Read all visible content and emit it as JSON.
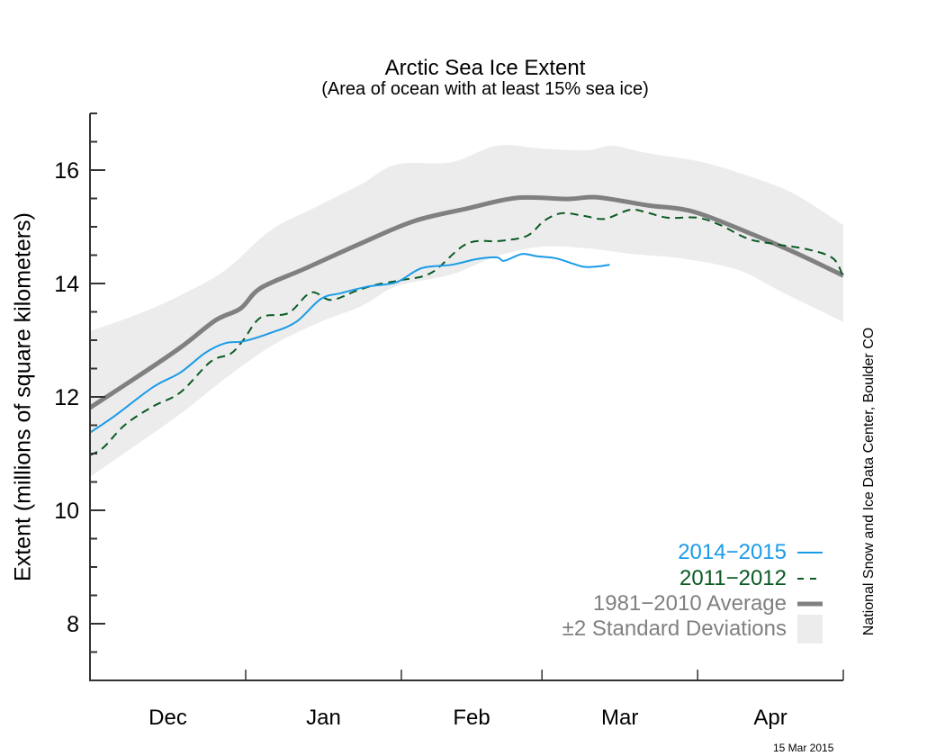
{
  "chart_data": {
    "type": "line",
    "title": "Arctic Sea Ice Extent",
    "subtitle": "(Area of ocean with at least 15% sea ice)",
    "xlabel": "",
    "ylabel": "Extent (millions of square kilometers)",
    "x_unit": "days since Dec 1",
    "xlim": [
      0,
      150
    ],
    "ylim": [
      7,
      17
    ],
    "y_major_ticks": [
      8,
      10,
      12,
      14,
      16
    ],
    "y_tick_labels": [
      "8",
      "10",
      "12",
      "14",
      "16"
    ],
    "y_minor_step": 0.5,
    "x_month_ticks": [
      0,
      31,
      62,
      90,
      121,
      150
    ],
    "x_month_labels": [
      {
        "label": "Dec",
        "center": 15.5
      },
      {
        "label": "Jan",
        "center": 46.5
      },
      {
        "label": "Feb",
        "center": 76
      },
      {
        "label": "Mar",
        "center": 105.5
      },
      {
        "label": "Apr",
        "center": 135.5
      }
    ],
    "grid": false,
    "legend_position": "bottom-right",
    "series": [
      {
        "name": "2014−2015",
        "style": "solid",
        "color": "#1a9be8",
        "x": [
          0,
          5,
          12.5,
          18,
          23,
          27,
          30.5,
          36,
          41,
          46,
          50,
          55.5,
          61,
          66,
          72,
          77,
          81,
          82.5,
          86,
          89,
          93,
          98,
          101,
          103.5
        ],
        "values": [
          11.37,
          11.67,
          12.17,
          12.43,
          12.78,
          12.95,
          12.98,
          13.13,
          13.32,
          13.73,
          13.83,
          13.95,
          14.02,
          14.27,
          14.33,
          14.43,
          14.46,
          14.4,
          14.52,
          14.48,
          14.44,
          14.3,
          14.3,
          14.33
        ]
      },
      {
        "name": "2011−2012",
        "style": "dashed",
        "color": "#0a5a23",
        "x": [
          0,
          2.7,
          7,
          12.5,
          18,
          24,
          28,
          30.5,
          34,
          39.5,
          44,
          48,
          53,
          57,
          62,
          68,
          75,
          81.5,
          87,
          90.5,
          94,
          98.5,
          102.5,
          107.5,
          111,
          115,
          121,
          125.5,
          131,
          136,
          143,
          148,
          150
        ],
        "values": [
          10.97,
          11.11,
          11.51,
          11.83,
          12.08,
          12.62,
          12.76,
          13.0,
          13.4,
          13.48,
          13.84,
          13.71,
          13.87,
          13.98,
          14.06,
          14.19,
          14.7,
          14.75,
          14.84,
          15.11,
          15.24,
          15.19,
          15.14,
          15.3,
          15.25,
          15.16,
          15.16,
          15.03,
          14.79,
          14.7,
          14.6,
          14.44,
          14.11
        ]
      },
      {
        "name": "1981−2010 Average",
        "style": "thick",
        "color": "#808080",
        "x": [
          0,
          9,
          18,
          25,
          30,
          34,
          43,
          54,
          64.5,
          75,
          85,
          95,
          101,
          111,
          120,
          131,
          140,
          150
        ],
        "values": [
          11.81,
          12.33,
          12.87,
          13.35,
          13.56,
          13.92,
          14.27,
          14.71,
          15.1,
          15.32,
          15.51,
          15.49,
          15.52,
          15.38,
          15.27,
          14.9,
          14.56,
          14.14
        ]
      }
    ],
    "band": {
      "name": "±2 Standard Deviations",
      "color": "#ececec",
      "upper": {
        "x": [
          0,
          9,
          18,
          27,
          36,
          45,
          54,
          61,
          72,
          81,
          90,
          99,
          104,
          111,
          122,
          131,
          140,
          150
        ],
        "values": [
          13.16,
          13.44,
          13.79,
          14.24,
          14.94,
          15.35,
          15.75,
          16.1,
          16.14,
          16.43,
          16.38,
          16.35,
          16.43,
          16.3,
          16.14,
          15.9,
          15.59,
          15.03
        ]
      },
      "lower": {
        "x": [
          0,
          9,
          18,
          27,
          36,
          45,
          54,
          61,
          72,
          81,
          90,
          99,
          108,
          118,
          129,
          138,
          150
        ],
        "values": [
          10.59,
          11.14,
          11.7,
          12.33,
          12.89,
          13.29,
          13.6,
          13.95,
          14.16,
          14.48,
          14.65,
          14.62,
          14.52,
          14.44,
          14.24,
          13.84,
          13.32
        ]
      }
    },
    "annotations": [
      "National Snow and Ice Data Center, Boulder CO",
      "15 Mar 2015"
    ]
  },
  "header": {
    "title": "Arctic Sea Ice Extent",
    "subtitle": "(Area of ocean with at least 15% sea ice)"
  },
  "axis": {
    "ylabel": "Extent (millions of square kilometers)"
  },
  "legend": {
    "items": [
      {
        "label": "2014−2015",
        "color": "#1a9be8"
      },
      {
        "label": "2011−2012",
        "color": "#0a5a23"
      },
      {
        "label": "1981−2010 Average",
        "color": "#808080"
      },
      {
        "label": "±2 Standard Deviations",
        "color": "#808080"
      }
    ]
  },
  "footer": {
    "credit": "National Snow and Ice Data Center, Boulder CO",
    "date": "15 Mar 2015"
  }
}
